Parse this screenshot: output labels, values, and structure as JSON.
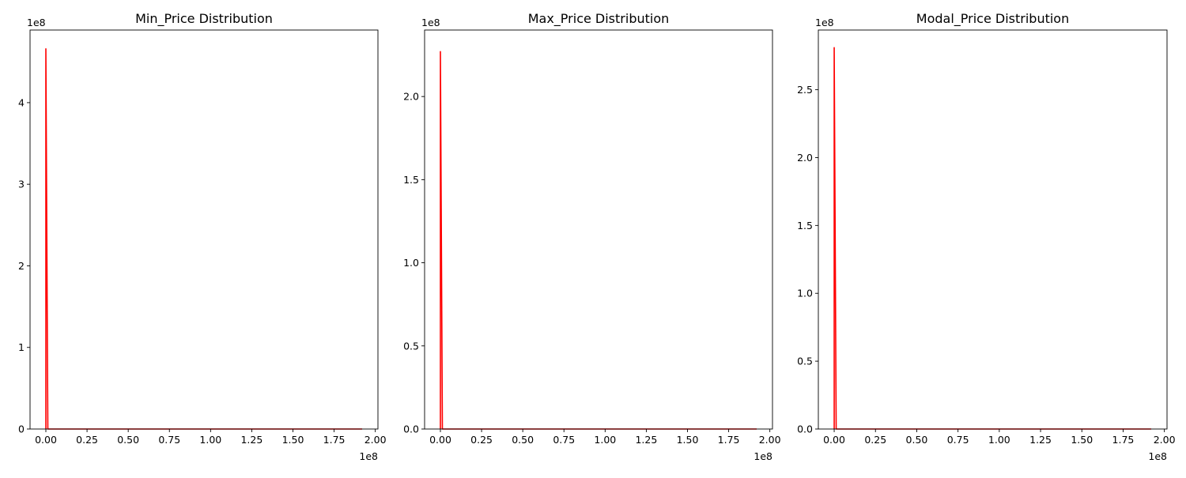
{
  "chart_data": [
    {
      "type": "line",
      "title": "Min_Price Distribution",
      "xlabel": "",
      "ylabel": "",
      "x_offset_label": "1e8",
      "y_offset_label": "1e8",
      "xlim": [
        -0.096,
        2.016
      ],
      "ylim": [
        0,
        4.89
      ],
      "x_ticks": [
        0.0,
        0.25,
        0.5,
        0.75,
        1.0,
        1.25,
        1.5,
        1.75,
        2.0
      ],
      "x_tick_labels": [
        "0.00",
        "0.25",
        "0.50",
        "0.75",
        "1.00",
        "1.25",
        "1.50",
        "1.75",
        "2.00"
      ],
      "y_ticks": [
        0,
        1,
        2,
        3,
        4
      ],
      "y_tick_labels": [
        "0",
        "1",
        "2",
        "3",
        "4"
      ],
      "series": [
        {
          "color": "#ff0000",
          "x": [
            0.0,
            0.0,
            0.012,
            0.05,
            0.25,
            0.5,
            0.75,
            1.0,
            1.25,
            1.5,
            1.75,
            1.92
          ],
          "y": [
            0.0,
            4.66,
            0.0,
            0.0,
            0.0,
            0.0,
            0.0,
            0.0,
            0.0,
            0.0,
            0.0,
            0.0
          ]
        }
      ]
    },
    {
      "type": "line",
      "title": "Max_Price Distribution",
      "xlabel": "",
      "ylabel": "",
      "x_offset_label": "1e8",
      "y_offset_label": "1e8",
      "xlim": [
        -0.096,
        2.016
      ],
      "ylim": [
        0,
        2.4
      ],
      "x_ticks": [
        0.0,
        0.25,
        0.5,
        0.75,
        1.0,
        1.25,
        1.5,
        1.75,
        2.0
      ],
      "x_tick_labels": [
        "0.00",
        "0.25",
        "0.50",
        "0.75",
        "1.00",
        "1.25",
        "1.50",
        "1.75",
        "2.00"
      ],
      "y_ticks": [
        0.0,
        0.5,
        1.0,
        1.5,
        2.0
      ],
      "y_tick_labels": [
        "0.0",
        "0.5",
        "1.0",
        "1.5",
        "2.0"
      ],
      "series": [
        {
          "color": "#ff0000",
          "x": [
            0.0,
            0.0,
            0.012,
            0.05,
            0.25,
            0.5,
            0.75,
            1.0,
            1.25,
            1.5,
            1.75,
            1.92
          ],
          "y": [
            0.0,
            2.27,
            0.0,
            0.0,
            0.0,
            0.0,
            0.0,
            0.0,
            0.0,
            0.0,
            0.0,
            0.0
          ]
        }
      ]
    },
    {
      "type": "line",
      "title": "Modal_Price Distribution",
      "xlabel": "",
      "ylabel": "",
      "x_offset_label": "1e8",
      "y_offset_label": "1e8",
      "xlim": [
        -0.096,
        2.016
      ],
      "ylim": [
        0,
        2.94
      ],
      "x_ticks": [
        0.0,
        0.25,
        0.5,
        0.75,
        1.0,
        1.25,
        1.5,
        1.75,
        2.0
      ],
      "x_tick_labels": [
        "0.00",
        "0.25",
        "0.50",
        "0.75",
        "1.00",
        "1.25",
        "1.50",
        "1.75",
        "2.00"
      ],
      "y_ticks": [
        0.0,
        0.5,
        1.0,
        1.5,
        2.0,
        2.5
      ],
      "y_tick_labels": [
        "0.0",
        "0.5",
        "1.0",
        "1.5",
        "2.0",
        "2.5"
      ],
      "series": [
        {
          "color": "#ff0000",
          "x": [
            0.0,
            0.0,
            0.012,
            0.05,
            0.25,
            0.5,
            0.75,
            1.0,
            1.25,
            1.5,
            1.75,
            1.92
          ],
          "y": [
            0.0,
            2.81,
            0.0,
            0.0,
            0.0,
            0.0,
            0.0,
            0.0,
            0.0,
            0.0,
            0.0,
            0.0
          ]
        }
      ]
    }
  ]
}
